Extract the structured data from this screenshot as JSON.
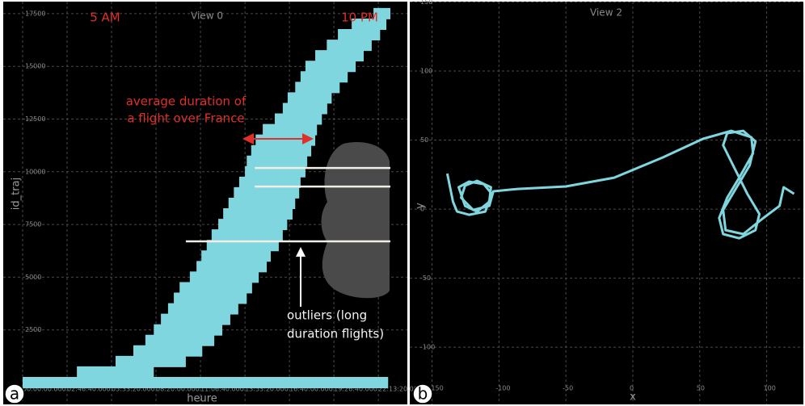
{
  "chart_data": [
    {
      "type": "trajectories",
      "panel_label": "a",
      "title": "View 0",
      "x_label": "heure",
      "y_label": "id_traj",
      "xlim": [
        0,
        82700
      ],
      "ylim": [
        -100,
        17750
      ],
      "xticks": [
        {
          "value": 0,
          "label": "00:00:00.000"
        },
        {
          "value": 10000,
          "label": "02:46:40.000"
        },
        {
          "value": 20000,
          "label": "05:33:20.000"
        },
        {
          "value": 30000,
          "label": "08:20:00.000"
        },
        {
          "value": 40000,
          "label": "11:06:40.000"
        },
        {
          "value": 50000,
          "label": "13:53:20.000"
        },
        {
          "value": 60000,
          "label": "16:40:00.000"
        },
        {
          "value": 70000,
          "label": "19:26:40.000"
        },
        {
          "value": 80000,
          "label": "22:13:20.000"
        }
      ],
      "yticks": [
        2500,
        5000,
        7500,
        10000,
        12500,
        15000,
        17500
      ],
      "grid": true,
      "color": "#7fd6df",
      "ids": [
        0,
        500,
        1000,
        1500,
        2000,
        2500,
        3000,
        3500,
        4000,
        4500,
        5000,
        5500,
        6000,
        6500,
        7000,
        7500,
        8000,
        8500,
        9000,
        9500,
        10000,
        10500,
        11000,
        11500,
        12000,
        12500,
        13000,
        13500,
        14000,
        14500,
        15000,
        15500,
        16000,
        16500,
        17000,
        17500
      ],
      "start": [
        0,
        12200,
        20900,
        24900,
        27600,
        29500,
        31100,
        32700,
        34000,
        35300,
        37600,
        39100,
        40200,
        41400,
        42500,
        44000,
        45100,
        46300,
        47500,
        48700,
        50000,
        50400,
        51400,
        52400,
        54000,
        56700,
        58500,
        59600,
        61300,
        62500,
        63600,
        65800,
        68400,
        70900,
        74000,
        78900
      ],
      "end": [
        82200,
        29500,
        36700,
        40400,
        43100,
        44900,
        46700,
        48500,
        50400,
        51600,
        53100,
        54900,
        55800,
        57600,
        58500,
        59500,
        60700,
        61300,
        62200,
        62500,
        63600,
        64000,
        64900,
        65800,
        66200,
        67300,
        68500,
        69500,
        71300,
        73100,
        74900,
        76700,
        78500,
        80400,
        81800,
        82700
      ],
      "outliers": {
        "color": "#f2eee6",
        "ids": [
          10180,
          9300,
          6700
        ],
        "start": [
          52200,
          52200,
          36700
        ],
        "end": [
          82700,
          82700,
          82700
        ]
      },
      "annotations": [
        "5 AM",
        "10 PM",
        "average duration of",
        "a flight over France",
        "outliers (long",
        "duration flights)"
      ]
    },
    {
      "type": "line",
      "panel_label": "b",
      "title": "View 2",
      "x_label": "x",
      "y_label": "y",
      "xlim": [
        -163,
        122
      ],
      "ylim": [
        -128,
        150
      ],
      "xticks": [
        -150,
        -100,
        -50,
        0,
        50,
        100
      ],
      "yticks": [
        -100,
        -50,
        0,
        50,
        100,
        150
      ],
      "grid": true,
      "color": "#7fd6df",
      "x": [
        -138.6,
        -134.3,
        -131.3,
        -122.3,
        -110.2,
        -105.4,
        -111.4,
        -122.3,
        -130.1,
        -125.3,
        -116.3,
        -107.2,
        -106,
        -116.3,
        -125.3,
        -128.3,
        -119.3,
        -107.2,
        -104.2,
        -86.1,
        -50,
        -13.9,
        22.3,
        52.4,
        73.5,
        88.6,
        89.8,
        79.5,
        70.5,
        64.5,
        67.5,
        79.5,
        91.6,
        94.6,
        85.5,
        76.5,
        67.5,
        70.5,
        82.5,
        91.6,
        87.3,
        76.5,
        67.5,
        69.3,
        82.5,
        97.6,
        109.6,
        112.7,
        120.5
      ],
      "y": [
        25.7,
        5.3,
        -1.8,
        -4.1,
        -1.8,
        11.1,
        18.1,
        19.9,
        15.8,
        2.3,
        -1.8,
        5.3,
        15.8,
        20.5,
        17,
        8.2,
        -0.6,
        2.3,
        12.9,
        14.6,
        16.4,
        22.8,
        37.4,
        50.9,
        56.7,
        52,
        40.4,
        22.8,
        8.2,
        -6.4,
        -18.1,
        -21.1,
        -15.2,
        -3.5,
        11.1,
        28.7,
        46.2,
        55,
        56.7,
        49.1,
        31.6,
        14,
        -0.6,
        -15.2,
        -18.1,
        -6.4,
        2.3,
        15.8,
        11.1
      ]
    }
  ]
}
